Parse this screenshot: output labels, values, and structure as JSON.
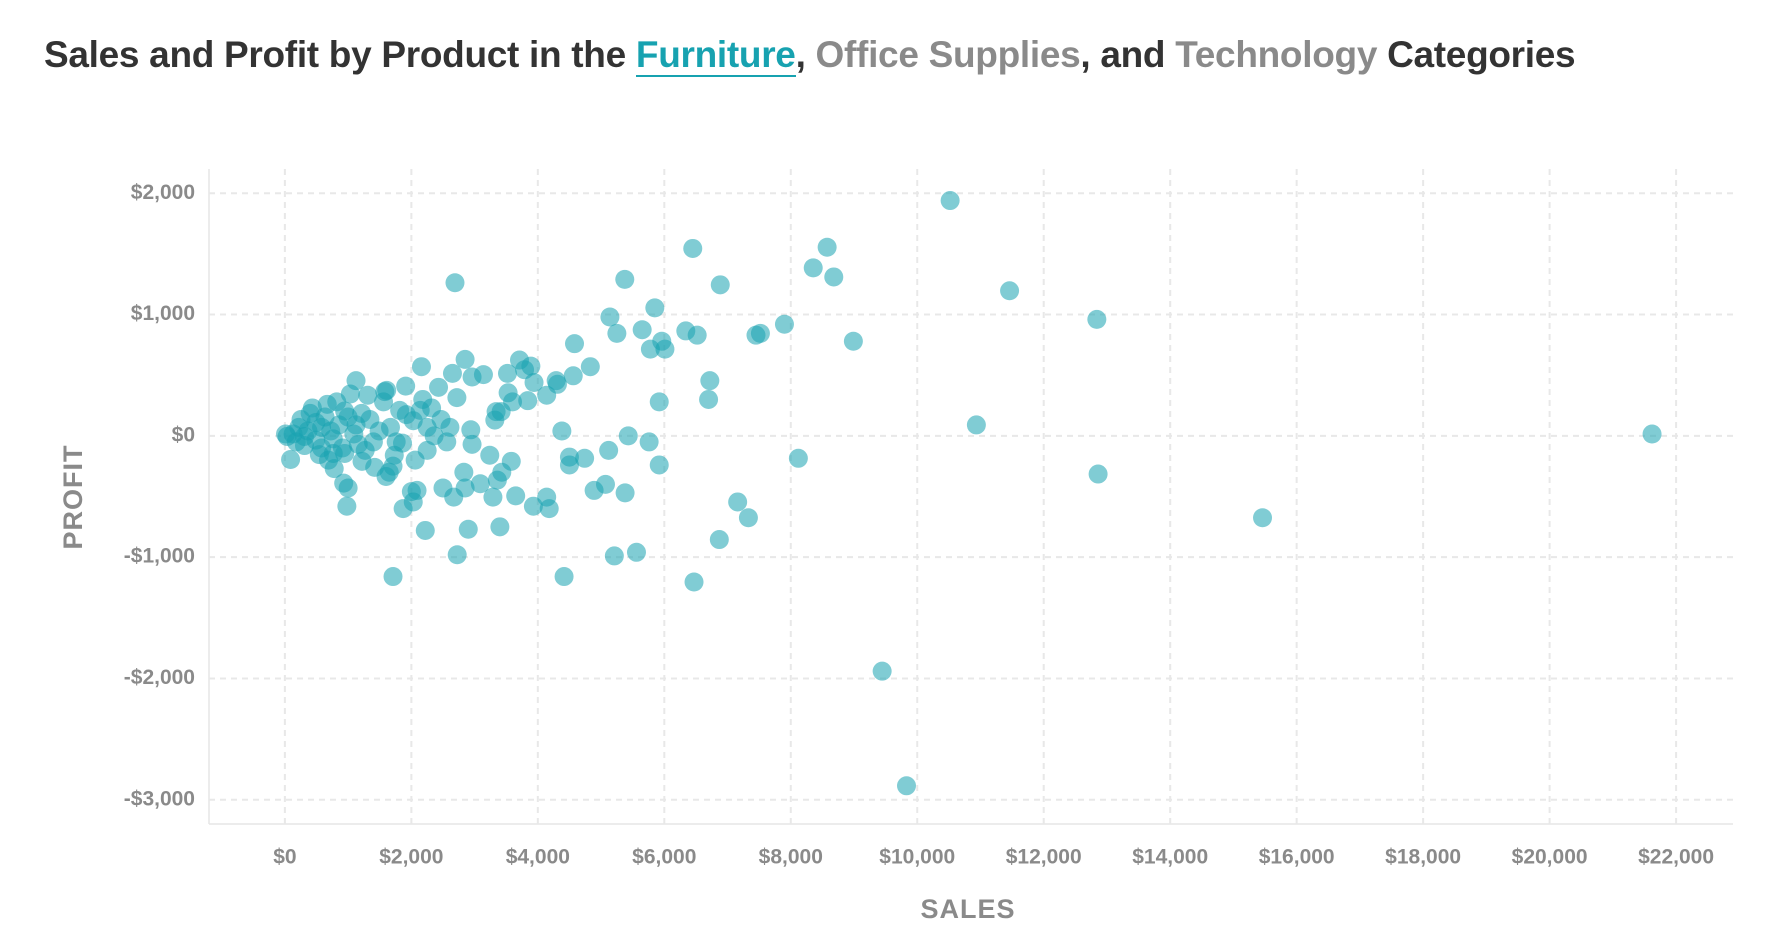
{
  "chart_data": {
    "type": "scatter",
    "title_parts": [
      {
        "text": "Sales and Profit by Product in the",
        "color": "#333333"
      },
      {
        "text": "Furniture",
        "color": "#17a2b0",
        "underline": true
      },
      {
        "text": ",",
        "color": "#333333"
      },
      {
        "text": "Office Supplies",
        "color": "#8a8a8a"
      },
      {
        "text": ", and",
        "color": "#333333"
      },
      {
        "text": "Technology",
        "color": "#8a8a8a"
      },
      {
        "text": "Categories",
        "color": "#333333"
      }
    ],
    "x_label": "SALES",
    "y_label": "PROFIT",
    "color": "#17a2b0",
    "grid": true,
    "xlim": [
      -1200,
      22900
    ],
    "ylim": [
      -3200,
      2200
    ],
    "xticks": [
      {
        "value": 0,
        "label": "$0"
      },
      {
        "value": 2000,
        "label": "$2,000"
      },
      {
        "value": 4000,
        "label": "$4,000"
      },
      {
        "value": 6000,
        "label": "$6,000"
      },
      {
        "value": 8000,
        "label": "$8,000"
      },
      {
        "value": 10000,
        "label": "$10,000"
      },
      {
        "value": 12000,
        "label": "$12,000"
      },
      {
        "value": 14000,
        "label": "$14,000"
      },
      {
        "value": 16000,
        "label": "$16,000"
      },
      {
        "value": 18000,
        "label": "$18,000"
      },
      {
        "value": 20000,
        "label": "$20,000"
      },
      {
        "value": 22000,
        "label": "$22,000"
      }
    ],
    "yticks": [
      {
        "value": 2000,
        "label": "$2,000"
      },
      {
        "value": 1000,
        "label": "$1,000"
      },
      {
        "value": 0,
        "label": "$0"
      },
      {
        "value": -1000,
        "label": "-$1,000"
      },
      {
        "value": -2000,
        "label": "-$2,000"
      },
      {
        "value": -3000,
        "label": "-$3,000"
      }
    ],
    "x": [
      10520,
      2690,
      6450,
      8575,
      8355,
      8680,
      6885,
      5375,
      11460,
      12840,
      5140,
      5850,
      5250,
      5650,
      6340,
      6520,
      5960,
      5780,
      6010,
      7450,
      7520,
      7900,
      8990,
      4580,
      4830,
      4560,
      6720,
      5920,
      6700,
      10935,
      21620,
      12860,
      15460,
      8120,
      7160,
      7330,
      6870,
      5560,
      5210,
      6470,
      9445,
      9830,
      4415,
      1710,
      2725,
      5430,
      5760,
      5920,
      5120,
      5380,
      4890,
      5070,
      4380,
      4500,
      4500,
      4740,
      4180,
      4140,
      3930,
      3580,
      3650,
      3430,
      3400,
      3360,
      3240,
      3290,
      2900,
      3090,
      2850,
      2830,
      2670,
      2500,
      2220,
      2030,
      2000,
      1870,
      2090,
      1710,
      2940,
      2960,
      2610,
      2560,
      2360,
      2470,
      2850,
      2650,
      3140,
      2960,
      2720,
      2160,
      2430,
      1910,
      2180,
      3520,
      3710,
      3890,
      3790,
      3530,
      3600,
      3340,
      3420,
      3320,
      3940,
      3840,
      4140,
      4290,
      4310,
      1125,
      1310,
      1560,
      1580,
      1610,
      2030,
      2250,
      2320,
      2140,
      1920,
      1815,
      1860,
      2060,
      2250,
      1730,
      1650,
      1600,
      1420,
      1220,
      1000,
      980,
      930,
      780,
      690,
      90,
      220,
      400,
      490,
      670,
      820,
      945,
      1035,
      1215,
      1345,
      1490,
      765,
      910,
      1090,
      1270,
      310,
      545,
      130,
      35,
      10,
      180,
      365,
      580,
      855,
      1125,
      1400,
      1670,
      1760,
      255,
      435,
      635,
      1000,
      725,
      310,
      490,
      945,
      1160,
      580,
      765
    ],
    "values": [
      1940,
      1262,
      1545,
      1555,
      1385,
      1310,
      1245,
      1290,
      1196,
      960,
      980,
      1055,
      845,
      875,
      865,
      830,
      780,
      715,
      715,
      830,
      845,
      920,
      780,
      760,
      570,
      495,
      455,
      280,
      300,
      90,
      15,
      -315,
      -675,
      -185,
      -545,
      -675,
      -855,
      -960,
      -990,
      -1205,
      -1940,
      -2885,
      -1160,
      -1160,
      -980,
      0,
      -50,
      -240,
      -120,
      -470,
      -450,
      -400,
      40,
      -175,
      -240,
      -185,
      -600,
      -505,
      -580,
      -210,
      -495,
      -300,
      -750,
      -365,
      -160,
      -505,
      -770,
      -395,
      -430,
      -300,
      -505,
      -430,
      -780,
      -545,
      -460,
      -600,
      -450,
      -250,
      50,
      -70,
      70,
      -50,
      0,
      135,
      630,
      515,
      505,
      485,
      315,
      570,
      400,
      410,
      300,
      515,
      625,
      575,
      545,
      355,
      280,
      200,
      200,
      130,
      440,
      290,
      335,
      455,
      425,
      455,
      335,
      280,
      365,
      375,
      125,
      70,
      230,
      210,
      175,
      210,
      -60,
      -200,
      -120,
      -160,
      -300,
      -335,
      -260,
      -210,
      -430,
      -580,
      -390,
      -270,
      -200,
      -195,
      70,
      185,
      110,
      260,
      280,
      205,
      345,
      185,
      135,
      40,
      -25,
      -100,
      15,
      -120,
      -80,
      -155,
      15,
      -5,
      15,
      -50,
      40,
      70,
      90,
      90,
      -50,
      70,
      -50,
      135,
      230,
      155,
      155,
      40,
      -5,
      -35,
      -145,
      -70,
      -100,
      -145
    ]
  }
}
